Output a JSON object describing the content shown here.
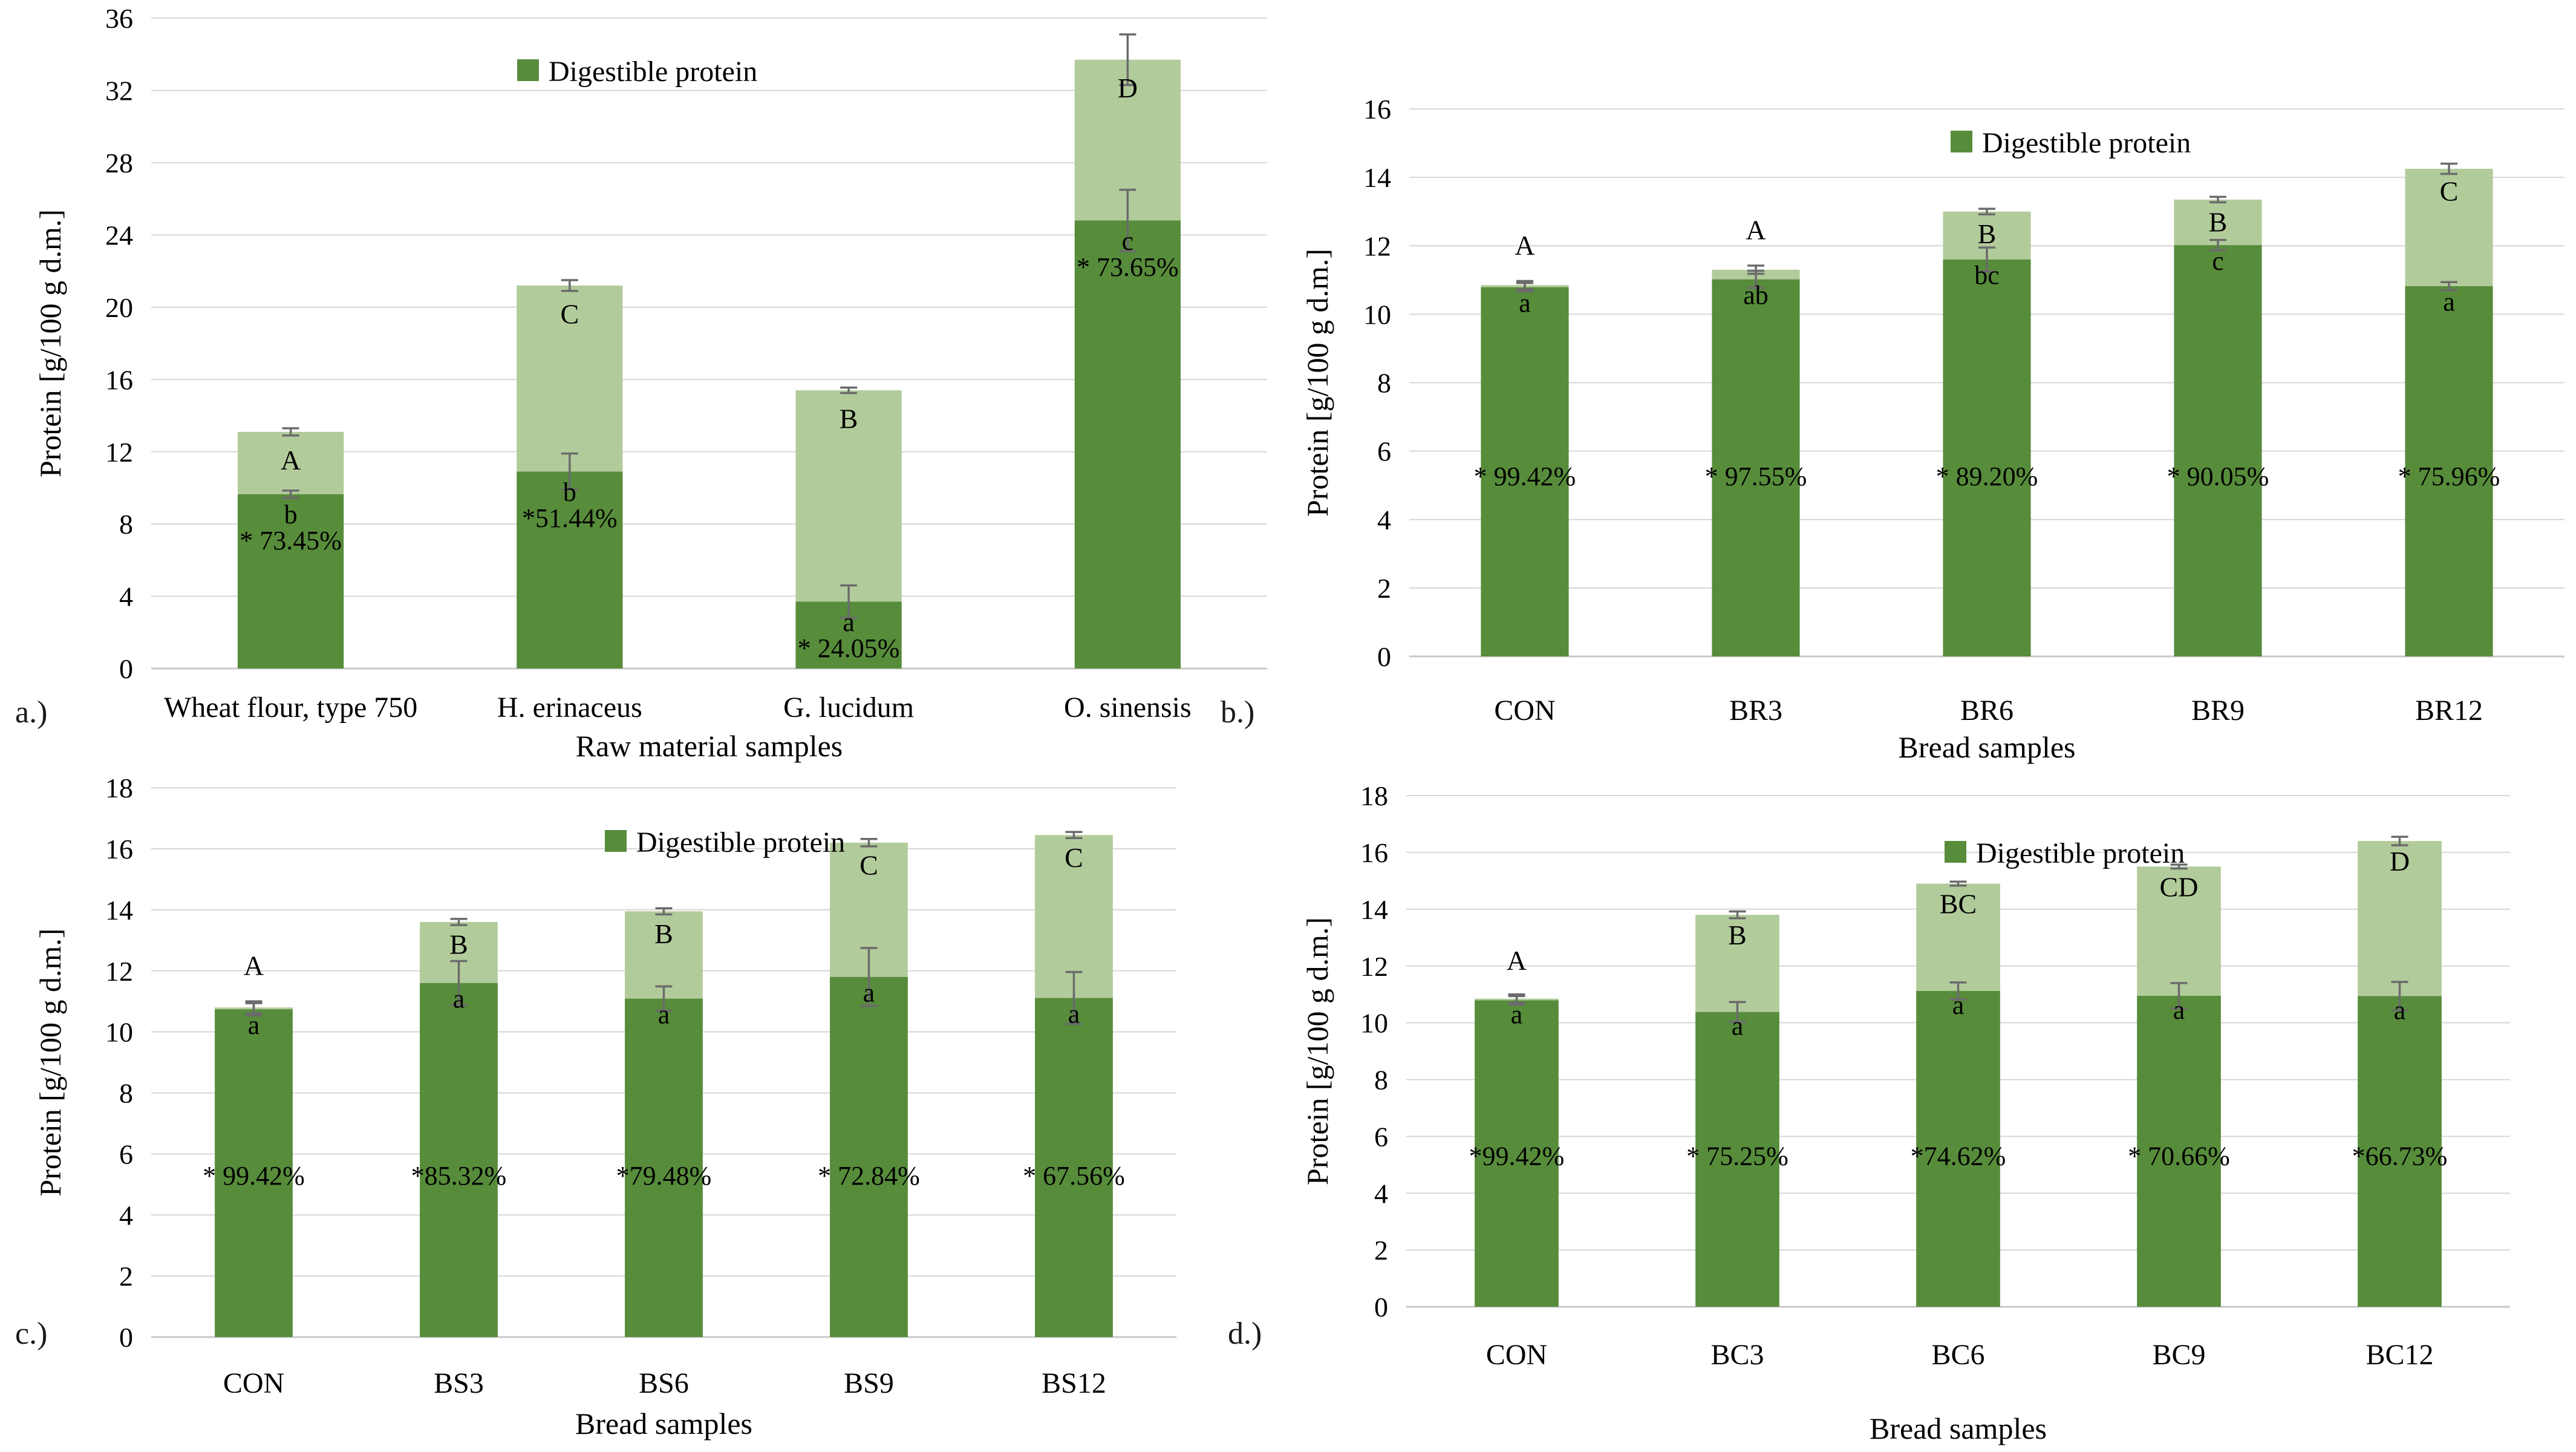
{
  "figure": {
    "legend_label": "Digestible protein",
    "colors": {
      "digestible": "#578c3b",
      "total_remainder": "#b2cb9b",
      "error_bar": "#6b6b6b",
      "gridline": "#d6d6d6",
      "axis_line": "#c9c9c9",
      "text": "#000000"
    }
  },
  "chart_data": [
    {
      "id": "a",
      "panel_label": "a.)",
      "type": "bar",
      "stacked": true,
      "legend": [
        "Digestible protein"
      ],
      "xlabel": "Raw material samples",
      "ylabel": "Protein  [g/100 g d.m.]",
      "ylim": [
        0,
        36
      ],
      "ytick_step": 4,
      "grid": true,
      "categories": [
        "Wheat flour, type 750",
        "H. erinaceus",
        "G. lucidum",
        "O. sinensis"
      ],
      "bars": [
        {
          "category": "Wheat flour, type 750",
          "total": 13.1,
          "digestible": 9.65,
          "letter_total": "A",
          "letter_digestible": "b",
          "pct_label": "* 73.45%",
          "err_total": 0.2,
          "err_digestible": 0.2
        },
        {
          "category": "H. erinaceus",
          "total": 21.2,
          "digestible": 10.9,
          "letter_total": "C",
          "letter_digestible": "b",
          "pct_label": "*51.44%",
          "err_total": 0.3,
          "err_digestible": 1.0
        },
        {
          "category": "G. lucidum",
          "total": 15.4,
          "digestible": 3.7,
          "letter_total": "B",
          "letter_digestible": "a",
          "pct_label": "* 24.05%",
          "err_total": 0.15,
          "err_digestible": 0.9
        },
        {
          "category": "O. sinensis",
          "total": 33.7,
          "digestible": 24.8,
          "letter_total": "D",
          "letter_digestible": "c",
          "pct_label": "* 73.65%",
          "err_total": 1.4,
          "err_digestible": 1.7
        }
      ]
    },
    {
      "id": "b",
      "panel_label": "b.)",
      "type": "bar",
      "stacked": true,
      "legend": [
        "Digestible protein"
      ],
      "xlabel": "Bread samples",
      "ylabel": "Protein  [g/100 g d.m.]",
      "ylim": [
        0,
        16
      ],
      "ytick_step": 2,
      "grid": true,
      "categories": [
        "CON",
        "BR3",
        "BR6",
        "BR9",
        "BR12"
      ],
      "bars": [
        {
          "category": "CON",
          "total": 10.85,
          "digestible": 10.79,
          "letter_total": "A",
          "letter_digestible": "a",
          "pct_label": "* 99.42%",
          "err_total": 0.12,
          "err_digestible": 0.12
        },
        {
          "category": "BR3",
          "total": 11.3,
          "digestible": 11.02,
          "letter_total": "A",
          "letter_digestible": "ab",
          "pct_label": "* 97.55%",
          "err_total": 0.12,
          "err_digestible": 0.25
        },
        {
          "category": "BR6",
          "total": 13.0,
          "digestible": 11.6,
          "letter_total": "B",
          "letter_digestible": "bc",
          "pct_label": "* 89.20%",
          "err_total": 0.08,
          "err_digestible": 0.35
        },
        {
          "category": "BR9",
          "total": 13.35,
          "digestible": 12.02,
          "letter_total": "B",
          "letter_digestible": "c",
          "pct_label": "* 90.05%",
          "err_total": 0.08,
          "err_digestible": 0.15
        },
        {
          "category": "BR12",
          "total": 14.25,
          "digestible": 10.82,
          "letter_total": "C",
          "letter_digestible": "a",
          "pct_label": "* 75.96%",
          "err_total": 0.15,
          "err_digestible": 0.12
        }
      ]
    },
    {
      "id": "c",
      "panel_label": "c.)",
      "type": "bar",
      "stacked": true,
      "legend": [
        "Digestible protein"
      ],
      "xlabel": "Bread samples",
      "ylabel": "Protein  [g/100 g d.m.]",
      "ylim": [
        0,
        18
      ],
      "ytick_step": 2,
      "grid": true,
      "categories": [
        "CON",
        "BS3",
        "BS6",
        "BS9",
        "BS12"
      ],
      "bars": [
        {
          "category": "CON",
          "total": 10.8,
          "digestible": 10.74,
          "letter_total": "A",
          "letter_digestible": "a",
          "pct_label": "* 99.42%",
          "err_total": 0.2,
          "err_digestible": 0.2
        },
        {
          "category": "BS3",
          "total": 13.6,
          "digestible": 11.6,
          "letter_total": "B",
          "letter_digestible": "a",
          "pct_label": "*85.32%",
          "err_total": 0.1,
          "err_digestible": 0.72
        },
        {
          "category": "BS6",
          "total": 13.95,
          "digestible": 11.09,
          "letter_total": "B",
          "letter_digestible": "a",
          "pct_label": "*79.48%",
          "err_total": 0.1,
          "err_digestible": 0.4
        },
        {
          "category": "BS9",
          "total": 16.2,
          "digestible": 11.8,
          "letter_total": "C",
          "letter_digestible": "a",
          "pct_label": "* 72.84%",
          "err_total": 0.12,
          "err_digestible": 0.95
        },
        {
          "category": "BS12",
          "total": 16.45,
          "digestible": 11.11,
          "letter_total": "C",
          "letter_digestible": "a",
          "pct_label": "* 67.56%",
          "err_total": 0.1,
          "err_digestible": 0.85
        }
      ]
    },
    {
      "id": "d",
      "panel_label": "d.)",
      "type": "bar",
      "stacked": true,
      "legend": [
        "Digestible protein"
      ],
      "xlabel": "Bread samples",
      "ylabel": "Protein  [g/100 g d.m.]",
      "ylim": [
        0,
        18
      ],
      "ytick_step": 2,
      "grid": true,
      "categories": [
        "CON",
        "BC3",
        "BC6",
        "BC9",
        "BC12"
      ],
      "bars": [
        {
          "category": "CON",
          "total": 10.85,
          "digestible": 10.79,
          "letter_total": "A",
          "letter_digestible": "a",
          "pct_label": "*99.42%",
          "err_total": 0.15,
          "err_digestible": 0.15
        },
        {
          "category": "BC3",
          "total": 13.8,
          "digestible": 10.38,
          "letter_total": "B",
          "letter_digestible": "a",
          "pct_label": "* 75.25%",
          "err_total": 0.12,
          "err_digestible": 0.35
        },
        {
          "category": "BC6",
          "total": 14.9,
          "digestible": 11.12,
          "letter_total": "BC",
          "letter_digestible": "a",
          "pct_label": "*74.62%",
          "err_total": 0.07,
          "err_digestible": 0.3
        },
        {
          "category": "BC9",
          "total": 15.5,
          "digestible": 10.95,
          "letter_total": "CD",
          "letter_digestible": "a",
          "pct_label": "* 70.66%",
          "err_total": 0.07,
          "err_digestible": 0.45
        },
        {
          "category": "BC12",
          "total": 16.4,
          "digestible": 10.94,
          "letter_total": "D",
          "letter_digestible": "a",
          "pct_label": "*66.73%",
          "err_total": 0.15,
          "err_digestible": 0.5
        }
      ]
    }
  ]
}
